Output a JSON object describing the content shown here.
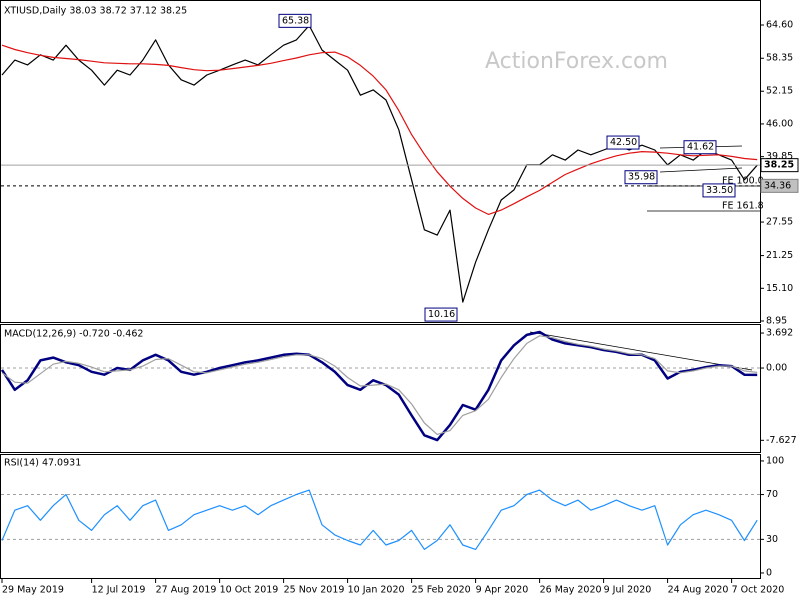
{
  "chart_data": [
    {
      "type": "line",
      "title": "XTIUSD,Daily  38.03 38.72 37.12 38.25",
      "watermark": "ActionForex.com",
      "ylim": [
        8.95,
        68.36
      ],
      "yticks": [
        {
          "value": 64.6,
          "label": "64.60"
        },
        58.35,
        52.15,
        {
          "value": 46,
          "label": "46.00"
        },
        39.85,
        {
          "value": 33.7,
          "label": "33.70"
        },
        27.55,
        21.25,
        {
          "value": 15.1,
          "label": "15.10"
        },
        8.95
      ],
      "series": [
        {
          "name": "XTIUSD",
          "color": "#000000",
          "values": [
            55.2,
            58.0,
            57.1,
            59.0,
            58.0,
            60.8,
            58.0,
            56.1,
            53.3,
            56.1,
            55.2,
            58.0,
            61.8,
            57.1,
            54.3,
            53.3,
            55.2,
            56.1,
            57.1,
            58.0,
            57.1,
            59.0,
            60.8,
            61.8,
            64.5,
            59.9,
            58.0,
            56.1,
            51.4,
            52.4,
            50.5,
            44.9,
            35.5,
            26.1,
            25.1,
            29.8,
            12.5,
            20.0,
            26.1,
            31.7,
            33.6,
            38.3,
            38.3,
            40.2,
            39.2,
            41.1,
            40.2,
            41.1,
            42.0,
            41.1,
            42.0,
            41.1,
            38.3,
            40.2,
            39.2,
            41.1,
            40.2,
            39.2,
            35.5,
            38.25
          ]
        },
        {
          "name": "MA",
          "color": "#e01010",
          "values": [
            60.8,
            60.0,
            59.4,
            58.9,
            58.5,
            58.3,
            58.1,
            57.8,
            57.5,
            57.4,
            57.3,
            57.3,
            57.2,
            57.0,
            56.6,
            56.2,
            56.0,
            56.1,
            56.4,
            56.7,
            57.0,
            57.4,
            57.9,
            58.4,
            59.0,
            59.4,
            59.5,
            58.6,
            57.0,
            55.0,
            52.4,
            48.5,
            44.0,
            40.3,
            37.0,
            34.3,
            32.0,
            30.2,
            29.0,
            29.8,
            31.0,
            32.3,
            33.5,
            35.0,
            36.5,
            37.5,
            38.5,
            39.3,
            40.0,
            40.5,
            40.8,
            40.7,
            40.5,
            40.2,
            40.0,
            40.1,
            40.2,
            39.9,
            39.5,
            39.3
          ]
        }
      ],
      "annotations": [
        65.38,
        {
          "value": 42.5,
          "label": "42.50"
        },
        41.62,
        35.98,
        {
          "value": 33.5,
          "label": "33.50"
        },
        10.16
      ],
      "fe_labels": [
        "FE 100.0",
        "FE 161.8"
      ],
      "last_price": 38.25,
      "level": 34.36
    },
    {
      "type": "line",
      "title": "MACD(12,26,9) -0.720 -0.462",
      "ylim": [
        -8.86,
        4.54
      ],
      "yticks": [
        3.692,
        {
          "value": 0,
          "label": "0.00"
        },
        -7.627
      ],
      "levels": [
        0
      ],
      "series": [
        {
          "name": "MACD",
          "color": "#000080",
          "values": [
            -0.2,
            -2.3,
            -1.3,
            0.8,
            1.1,
            0.6,
            0.3,
            -0.4,
            -0.7,
            0,
            -0.2,
            0.8,
            1.4,
            0.8,
            -0.4,
            -0.7,
            -0.4,
            0,
            0.3,
            0.6,
            0.8,
            1.1,
            1.4,
            1.5,
            1.4,
            0.6,
            -0.4,
            -1.8,
            -2.3,
            -1.3,
            -1.8,
            -2.8,
            -5.0,
            -7.1,
            -7.6,
            -6.0,
            -3.9,
            -4.4,
            -2.3,
            0.8,
            2.4,
            3.5,
            3.8,
            3.0,
            2.6,
            2.4,
            2.2,
            1.9,
            1.7,
            1.4,
            1.4,
            0.8,
            -1.1,
            -0.4,
            -0.2,
            0.1,
            0.3,
            0.2,
            -0.7,
            -0.72
          ]
        },
        {
          "name": "Signal",
          "color": "#a0a0a0",
          "values": [
            -0.5,
            -1.5,
            -1.6,
            -0.6,
            0.4,
            0.7,
            0.5,
            0.1,
            -0.4,
            -0.3,
            -0.2,
            0.2,
            0.9,
            1.0,
            0.3,
            -0.4,
            -0.5,
            -0.2,
            0.1,
            0.4,
            0.6,
            0.9,
            1.2,
            1.4,
            1.4,
            1.0,
            0.2,
            -1.0,
            -1.9,
            -1.8,
            -1.7,
            -2.3,
            -3.8,
            -5.8,
            -7.0,
            -6.6,
            -5.0,
            -4.5,
            -3.3,
            -1.0,
            1.0,
            2.6,
            3.4,
            3.2,
            2.8,
            2.5,
            2.3,
            2.0,
            1.8,
            1.5,
            1.4,
            1.0,
            -0.3,
            -0.5,
            -0.3,
            0,
            0.2,
            0.2,
            -0.3,
            -0.462
          ]
        }
      ]
    },
    {
      "type": "line",
      "title": "RSI(14) 47.0931",
      "ylim": [
        -4.5,
        105.3
      ],
      "yticks": [
        100,
        70,
        30,
        0
      ],
      "levels": [
        70,
        30
      ],
      "categories": [
        "29 May 2019",
        null,
        null,
        null,
        null,
        null,
        null,
        "12 Jul 2019",
        null,
        null,
        null,
        null,
        "27 Aug 2019",
        null,
        null,
        null,
        null,
        "10 Oct 2019",
        null,
        null,
        null,
        null,
        "25 Nov 2019",
        null,
        null,
        null,
        null,
        "10 Jan 2020",
        null,
        null,
        null,
        null,
        "25 Feb 2020",
        null,
        null,
        null,
        null,
        "9 Apr 2020",
        null,
        null,
        null,
        null,
        "26 May 2020",
        null,
        null,
        null,
        null,
        "9 Jul 2020",
        null,
        null,
        null,
        null,
        "24 Aug 2020",
        null,
        null,
        null,
        null,
        "7 Oct 2020",
        null,
        null
      ],
      "series": [
        {
          "name": "RSI",
          "color": "#1e90ff",
          "values": [
            29,
            56,
            60,
            47,
            60,
            70,
            47,
            38,
            52,
            60,
            47,
            60,
            65,
            38,
            43,
            52,
            56,
            60,
            56,
            60,
            52,
            60,
            65,
            70,
            74,
            43,
            34,
            29,
            25,
            38,
            25,
            29,
            38,
            21,
            29,
            43,
            25,
            21,
            38,
            56,
            60,
            70,
            74,
            65,
            60,
            65,
            56,
            60,
            65,
            60,
            56,
            60,
            25,
            43,
            52,
            56,
            52,
            47,
            29,
            47.0931
          ]
        }
      ]
    }
  ]
}
